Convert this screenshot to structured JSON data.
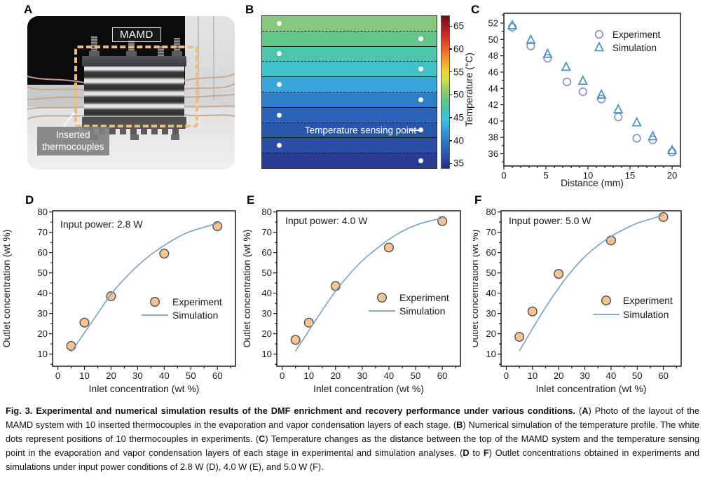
{
  "panel_labels": {
    "a": "A",
    "b": "B",
    "c": "C",
    "d": "D",
    "e": "E",
    "f": "F"
  },
  "panel_a": {
    "device_label": "MAMD",
    "annotation": "Inserted\nthermocouples",
    "colors": {
      "dashed_box": "#f1bd7e",
      "wire": "#c8a78c"
    }
  },
  "panel_b": {
    "sensing_label": "Temperature sensing point",
    "bands": [
      {
        "color": "#86c97e",
        "dot": "left"
      },
      {
        "color": "#63c48c",
        "dot": "right"
      },
      {
        "color": "#4fc3ac",
        "dot": "left"
      },
      {
        "color": "#41c2c8",
        "dot": "right"
      },
      {
        "color": "#3aa5da",
        "dot": "left"
      },
      {
        "color": "#2f7fc6",
        "dot": "right"
      },
      {
        "color": "#2c63b8",
        "dot": "left"
      },
      {
        "color": "#2b55ab",
        "dot": "right",
        "labeled": true
      },
      {
        "color": "#2b4da5",
        "dot": "left"
      },
      {
        "color": "#283c92",
        "dot": "right"
      }
    ],
    "colorbar": {
      "min": 34,
      "max": 67.2,
      "ticks": [
        65,
        60,
        55,
        50,
        45,
        40,
        35
      ],
      "gradient": [
        [
          "#701013",
          0
        ],
        [
          "#a6191c",
          7
        ],
        [
          "#d43428",
          14
        ],
        [
          "#ef6428",
          22
        ],
        [
          "#f59e2e",
          29
        ],
        [
          "#f0d03a",
          36
        ],
        [
          "#cfe04c",
          42
        ],
        [
          "#93cf68",
          49
        ],
        [
          "#5ec389",
          56
        ],
        [
          "#48c2b4",
          62
        ],
        [
          "#40c3da",
          67
        ],
        [
          "#36a8dc",
          73
        ],
        [
          "#2f83cc",
          80
        ],
        [
          "#2c64ba",
          87
        ],
        [
          "#2a4ba6",
          93
        ],
        [
          "#242a7e",
          100
        ]
      ]
    }
  },
  "chart_data": [
    {
      "id": "panel_c",
      "type": "scatter",
      "xlabel": "Distance (mm)",
      "ylabel": "Temperature (°C)",
      "xlim": [
        0,
        21
      ],
      "ylim": [
        34.5,
        53.2
      ],
      "xticks": [
        0,
        5,
        10,
        15,
        20
      ],
      "yticks": [
        36,
        38,
        40,
        42,
        44,
        46,
        48,
        50,
        52
      ],
      "x_minor_step": 1,
      "y_minor_step": 1,
      "legend_position": "upper-right",
      "series": [
        {
          "name": "Experiment",
          "marker": "circle",
          "fill": "none",
          "color": "#8c92c9",
          "points": [
            [
              1,
              51.5
            ],
            [
              3.2,
              49.2
            ],
            [
              5.2,
              47.7
            ],
            [
              7.5,
              44.8
            ],
            [
              9.4,
              43.6
            ],
            [
              11.6,
              42.7
            ],
            [
              13.6,
              40.5
            ],
            [
              15.8,
              37.9
            ],
            [
              17.7,
              37.7
            ],
            [
              20,
              36.2
            ]
          ]
        },
        {
          "name": "Simulation",
          "marker": "triangle",
          "fill": "none",
          "color": "#4691b4",
          "points": [
            [
              1,
              51.7
            ],
            [
              3.2,
              49.9
            ],
            [
              5.2,
              48.2
            ],
            [
              7.4,
              46.6
            ],
            [
              9.4,
              44.9
            ],
            [
              11.6,
              43.2
            ],
            [
              13.6,
              41.4
            ],
            [
              15.8,
              39.8
            ],
            [
              17.7,
              38.1
            ],
            [
              20,
              36.4
            ]
          ]
        }
      ]
    },
    {
      "id": "panel_d",
      "type": "scatter",
      "annotation": "Input power: 2.8 W",
      "xlabel": "Inlet concentration (wt %)",
      "ylabel": "Outlet concentration (wt %)",
      "xlim": [
        -2,
        66.8
      ],
      "ylim": [
        4,
        80.6
      ],
      "xticks": [
        0,
        10,
        20,
        30,
        40,
        50,
        60
      ],
      "yticks": [
        10,
        20,
        30,
        40,
        50,
        60,
        70,
        80
      ],
      "x_minor_step": 5,
      "y_minor_step": 5,
      "legend_position": "middle-right",
      "series": [
        {
          "name": "Experiment",
          "marker": "circle",
          "fill": "#f6c493",
          "color": "#4d4d4d",
          "points": [
            [
              5,
              14
            ],
            [
              10,
              25.5
            ],
            [
              20,
              38.5
            ],
            [
              40,
              59.5
            ],
            [
              60,
              73
            ]
          ]
        },
        {
          "name": "Simulation",
          "marker": "line",
          "color": "#7aa0c4",
          "points": [
            [
              5,
              11
            ],
            [
              10,
              20.5
            ],
            [
              15,
              30
            ],
            [
              20,
              39.5
            ],
            [
              25,
              47
            ],
            [
              30,
              53.5
            ],
            [
              35,
              59
            ],
            [
              40,
              63.5
            ],
            [
              45,
              67.5
            ],
            [
              50,
              70.5
            ],
            [
              55,
              72.5
            ],
            [
              60,
              74.5
            ]
          ]
        }
      ]
    },
    {
      "id": "panel_e",
      "type": "scatter",
      "annotation": "Input power: 4.0 W",
      "xlabel": "Inlet concentration (wt %)",
      "ylabel": "Outlet concentration (wt %)",
      "xlim": [
        -2,
        66.8
      ],
      "ylim": [
        4,
        80.6
      ],
      "xticks": [
        0,
        10,
        20,
        30,
        40,
        50,
        60
      ],
      "yticks": [
        10,
        20,
        30,
        40,
        50,
        60,
        70,
        80
      ],
      "x_minor_step": 5,
      "y_minor_step": 5,
      "legend_position": "middle-right",
      "series": [
        {
          "name": "Experiment",
          "marker": "circle",
          "fill": "#f6c493",
          "color": "#4d4d4d",
          "points": [
            [
              5,
              17
            ],
            [
              10,
              25.5
            ],
            [
              20,
              43.5
            ],
            [
              40,
              62.5
            ],
            [
              60,
              75.5
            ]
          ]
        },
        {
          "name": "Simulation",
          "marker": "line",
          "color": "#7aa0c4",
          "points": [
            [
              5,
              11.5
            ],
            [
              10,
              21.5
            ],
            [
              15,
              31.5
            ],
            [
              20,
              41
            ],
            [
              25,
              49
            ],
            [
              30,
              56
            ],
            [
              35,
              61.5
            ],
            [
              40,
              66.5
            ],
            [
              45,
              70.5
            ],
            [
              50,
              73.5
            ],
            [
              55,
              75.5
            ],
            [
              60,
              77
            ]
          ]
        }
      ]
    },
    {
      "id": "panel_f",
      "type": "scatter",
      "annotation": "Input power: 5.0 W",
      "xlabel": "Inlet concentration (wt %)",
      "ylabel": "Outlet concentration (wt %)",
      "xlim": [
        -2,
        66.8
      ],
      "ylim": [
        4,
        80.6
      ],
      "xticks": [
        0,
        10,
        20,
        30,
        40,
        50,
        60
      ],
      "yticks": [
        10,
        20,
        30,
        40,
        50,
        60,
        70,
        80
      ],
      "x_minor_step": 5,
      "y_minor_step": 5,
      "legend_position": "middle-right",
      "series": [
        {
          "name": "Experiment",
          "marker": "circle",
          "fill": "#f6c493",
          "color": "#4d4d4d",
          "points": [
            [
              5,
              18.5
            ],
            [
              10,
              31
            ],
            [
              20,
              49.5
            ],
            [
              40,
              66
            ],
            [
              60,
              77.5
            ]
          ]
        },
        {
          "name": "Simulation",
          "marker": "line",
          "color": "#7aa0c4",
          "points": [
            [
              5,
              11.5
            ],
            [
              10,
              22.5
            ],
            [
              15,
              33
            ],
            [
              20,
              42.5
            ],
            [
              25,
              51
            ],
            [
              30,
              58
            ],
            [
              35,
              63.5
            ],
            [
              40,
              68
            ],
            [
              45,
              71.5
            ],
            [
              50,
              74.5
            ],
            [
              55,
              76.5
            ],
            [
              60,
              78.5
            ]
          ]
        }
      ]
    }
  ],
  "caption": {
    "segments": [
      {
        "bold": true,
        "text": "Fig. 3. Experimental and numerical simulation results of the DMF enrichment and recovery performance under various conditions. "
      },
      {
        "bold": false,
        "text": "("
      },
      {
        "bold": true,
        "text": "A"
      },
      {
        "bold": false,
        "text": ") Photo of the layout of the MAMD system with 10 inserted thermocouples in the evaporation and vapor condensation layers of each stage. ("
      },
      {
        "bold": true,
        "text": "B"
      },
      {
        "bold": false,
        "text": ") Numerical simulation of the temperature profile. The white dots represent positions of 10 thermocouples in experiments. ("
      },
      {
        "bold": true,
        "text": "C"
      },
      {
        "bold": false,
        "text": ") Temperature changes as the distance between the top of the MAMD system and the temperature sensing point in the evaporation and vapor condensation layers of each stage in experimental and simulation analyses. ("
      },
      {
        "bold": true,
        "text": "D"
      },
      {
        "bold": false,
        "text": " to "
      },
      {
        "bold": true,
        "text": "F"
      },
      {
        "bold": false,
        "text": ") Outlet concentrations obtained in experiments and simulations under input power conditions of 2.8 W (D), 4.0 W (E), and 5.0 W (F)."
      }
    ]
  }
}
